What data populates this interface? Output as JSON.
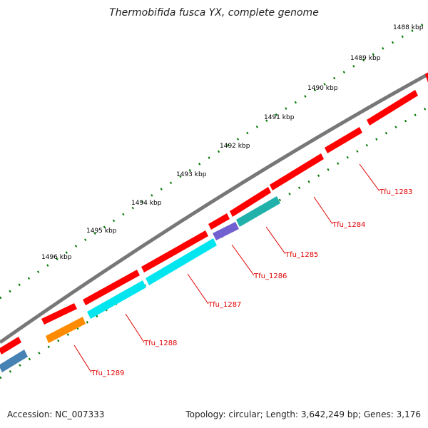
{
  "title": "Thermobifida fusca YX, complete genome",
  "footer": {
    "accession": "Accession: NC_007333",
    "info": "Topology: circular; Length: 3,642,249 bp; Genes: 3,176"
  },
  "ticks": [
    "1488 kbp",
    "1489 kbp",
    "1490 kbp",
    "1491 kbp",
    "1492 kbp",
    "1493 kbp",
    "1494 kbp",
    "1495 kbp",
    "1496 kbp"
  ],
  "genes": [
    {
      "label": "Tfu_1283",
      "color": "#ff0000"
    },
    {
      "label": "Tfu_1284",
      "color": "#ff0000"
    },
    {
      "label": "Tfu_1285",
      "color": "#20b2aa"
    },
    {
      "label": "Tfu_1286",
      "color": "#7060d0"
    },
    {
      "label": "Tfu_1287",
      "color": "#00e5ee"
    },
    {
      "label": "Tfu_1288",
      "color": "#00e5ee"
    },
    {
      "label": "Tfu_1289",
      "color": "#ff8c00"
    }
  ],
  "colors": {
    "backbone": "#777777",
    "forward": "#ff0000",
    "tick": "#007700",
    "label": "#e00000",
    "blue": "#4682b4"
  }
}
